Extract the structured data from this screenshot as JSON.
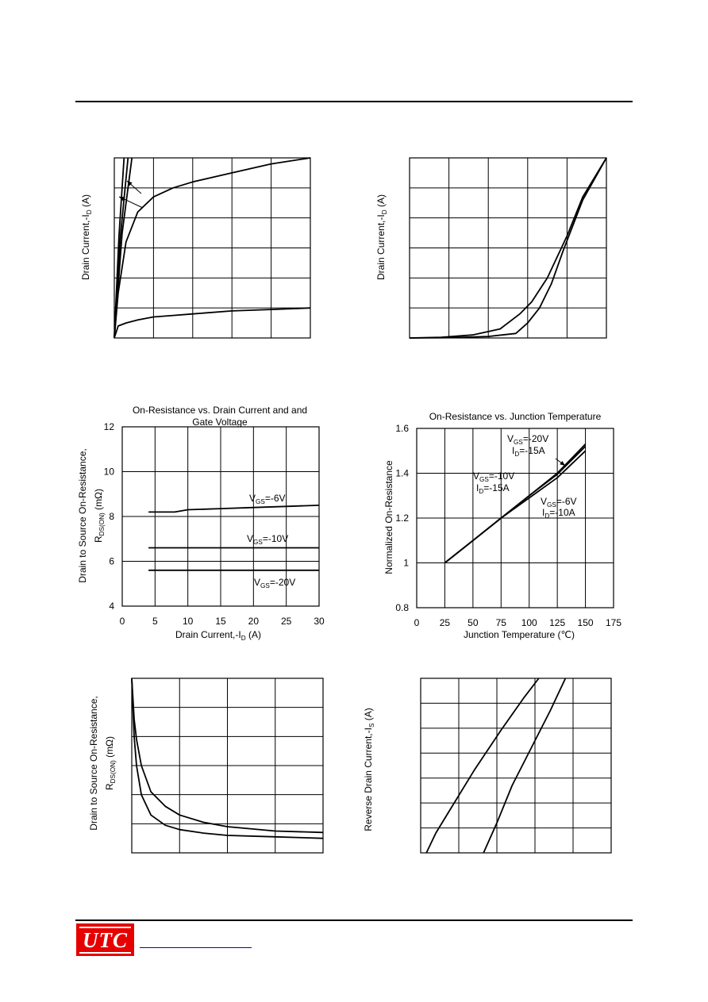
{
  "chart_data": [
    {
      "type": "line",
      "title": "",
      "ylabel": "Drain Current,-I_D (A)",
      "xlabel": "",
      "grid": true,
      "series": [
        {
          "x": [
            0,
            0.1,
            0.3,
            0.6,
            1,
            1.5,
            2,
            3,
            4,
            5
          ],
          "y": [
            0,
            1.5,
            3.2,
            4.2,
            4.7,
            5.0,
            5.2,
            5.5,
            5.8,
            6.0
          ]
        },
        {
          "x": [
            0,
            0.1,
            0.3,
            0.6,
            1,
            1.5,
            2,
            3,
            4,
            5
          ],
          "y": [
            0,
            0.4,
            0.5,
            0.6,
            0.7,
            0.75,
            0.8,
            0.9,
            0.95,
            1.0
          ]
        },
        {
          "x": [
            0,
            0.2,
            0.45
          ],
          "y": [
            0,
            3.5,
            6
          ]
        },
        {
          "x": [
            0,
            0.15,
            0.35
          ],
          "y": [
            0,
            3.3,
            6
          ]
        },
        {
          "x": [
            0,
            0.12,
            0.25
          ],
          "y": [
            0,
            3.4,
            6
          ]
        }
      ],
      "xlim": [
        0,
        5
      ],
      "ylim": [
        0,
        6
      ]
    },
    {
      "type": "line",
      "title": "",
      "ylabel": "Drain Current,-I_D (A)",
      "xlabel": "",
      "grid": true,
      "series": [
        {
          "x": [
            0,
            0.8,
            1.6,
            2.3,
            2.8,
            3.1,
            3.5,
            4.0,
            4.4,
            5.0
          ],
          "y": [
            0,
            0.02,
            0.1,
            0.3,
            0.8,
            1.2,
            2.0,
            3.4,
            4.7,
            6.0
          ]
        },
        {
          "x": [
            0,
            1.0,
            2.0,
            2.7,
            3.0,
            3.3,
            3.6,
            3.9,
            4.4,
            5.0
          ],
          "y": [
            0,
            0.01,
            0.05,
            0.15,
            0.5,
            1.0,
            1.8,
            2.9,
            4.6,
            6.0
          ]
        }
      ],
      "xlim": [
        0,
        5
      ],
      "ylim": [
        0,
        6
      ]
    },
    {
      "type": "line",
      "title": "On-Resistance vs. Drain Current and Gate Voltage",
      "xlabel": "Drain Current,-I_D (A)",
      "ylabel": "Drain to Source On-Resistance, R_DS(ON) (mΩ)",
      "xticks": [
        "0",
        "5",
        "10",
        "15",
        "20",
        "25",
        "30"
      ],
      "yticks": [
        "4",
        "6",
        "8",
        "10",
        "12"
      ],
      "xlim": [
        0,
        30
      ],
      "ylim": [
        4,
        12
      ],
      "grid": true,
      "series": [
        {
          "name": "V_GS=-6V",
          "x": [
            4,
            8,
            10,
            15,
            20,
            25,
            30
          ],
          "y": [
            8.2,
            8.2,
            8.3,
            8.35,
            8.4,
            8.45,
            8.5
          ]
        },
        {
          "name": "V_GS=-10V",
          "x": [
            4,
            30
          ],
          "y": [
            6.6,
            6.6
          ]
        },
        {
          "name": "V_GS=-20V",
          "x": [
            4,
            30
          ],
          "y": [
            5.6,
            5.6
          ]
        }
      ],
      "annotations": [
        "V_GS=-6V",
        "V_GS=-10V",
        "V_GS=-20V"
      ]
    },
    {
      "type": "line",
      "title": "On-Resistance vs. Junction Temperature",
      "xlabel": "Junction Temperature (℃)",
      "ylabel": "Normalized On-Resistance",
      "xticks": [
        "0",
        "25",
        "50",
        "75",
        "100",
        "125",
        "150",
        "175"
      ],
      "yticks": [
        "0.8",
        "1",
        "1.2",
        "1.4",
        "1.6"
      ],
      "xlim": [
        0,
        175
      ],
      "ylim": [
        0.8,
        1.6
      ],
      "grid": true,
      "series": [
        {
          "name": "V_GS=-20V, I_D=-15A",
          "x": [
            25,
            50,
            75,
            100,
            125,
            150
          ],
          "y": [
            1.0,
            1.1,
            1.2,
            1.3,
            1.4,
            1.53
          ]
        },
        {
          "name": "V_GS=-10V, I_D=-15A",
          "x": [
            25,
            50,
            75,
            100,
            125,
            150
          ],
          "y": [
            1.0,
            1.1,
            1.2,
            1.3,
            1.395,
            1.52
          ]
        },
        {
          "name": "V_GS=-6V, I_D=-10A",
          "x": [
            25,
            50,
            75,
            100,
            125,
            150
          ],
          "y": [
            1.0,
            1.1,
            1.2,
            1.29,
            1.38,
            1.5
          ]
        }
      ],
      "annotations": [
        "V_GS=-20V",
        "I_D=-15A",
        "V_GS=-10V",
        "I_D=-15A",
        "V_GS=-6V",
        "I_D=-10A"
      ]
    },
    {
      "type": "line",
      "title": "",
      "ylabel": "Drain to Source On-Resistance, R_DS(ON) (mΩ)",
      "xlabel": "",
      "grid": true,
      "xlim": [
        0,
        4
      ],
      "ylim": [
        0,
        6
      ],
      "series": [
        {
          "x": [
            0,
            0.05,
            0.1,
            0.2,
            0.4,
            0.7,
            1.0,
            1.5,
            2.0,
            3.0,
            4.0
          ],
          "y": [
            6.0,
            4.6,
            3.9,
            3.0,
            2.1,
            1.6,
            1.3,
            1.05,
            0.9,
            0.75,
            0.7
          ]
        },
        {
          "x": [
            0,
            0.05,
            0.1,
            0.2,
            0.4,
            0.7,
            1.0,
            1.5,
            2.0,
            3.0,
            4.0
          ],
          "y": [
            6.0,
            4.0,
            3.0,
            2.0,
            1.3,
            0.95,
            0.8,
            0.68,
            0.6,
            0.55,
            0.5
          ]
        }
      ]
    },
    {
      "type": "line",
      "title": "",
      "ylabel": "Reverse Drain Current,-I_S (A)",
      "xlabel": "",
      "grid": true,
      "xlim": [
        0,
        5
      ],
      "ylim": [
        0,
        7
      ],
      "series": [
        {
          "x": [
            0.15,
            0.4,
            0.8,
            1.4,
            2.1,
            2.7,
            3.1
          ],
          "y": [
            0,
            0.8,
            1.8,
            3.3,
            4.9,
            6.2,
            7.0
          ]
        },
        {
          "x": [
            1.65,
            2.0,
            2.4,
            2.9,
            3.4,
            3.8
          ],
          "y": [
            0,
            1.2,
            2.7,
            4.2,
            5.7,
            7.0
          ]
        }
      ]
    }
  ],
  "footer": {
    "logo_text": "UTC"
  },
  "colors": {
    "logo_bg": "#e60000",
    "link": "#0000cc"
  }
}
